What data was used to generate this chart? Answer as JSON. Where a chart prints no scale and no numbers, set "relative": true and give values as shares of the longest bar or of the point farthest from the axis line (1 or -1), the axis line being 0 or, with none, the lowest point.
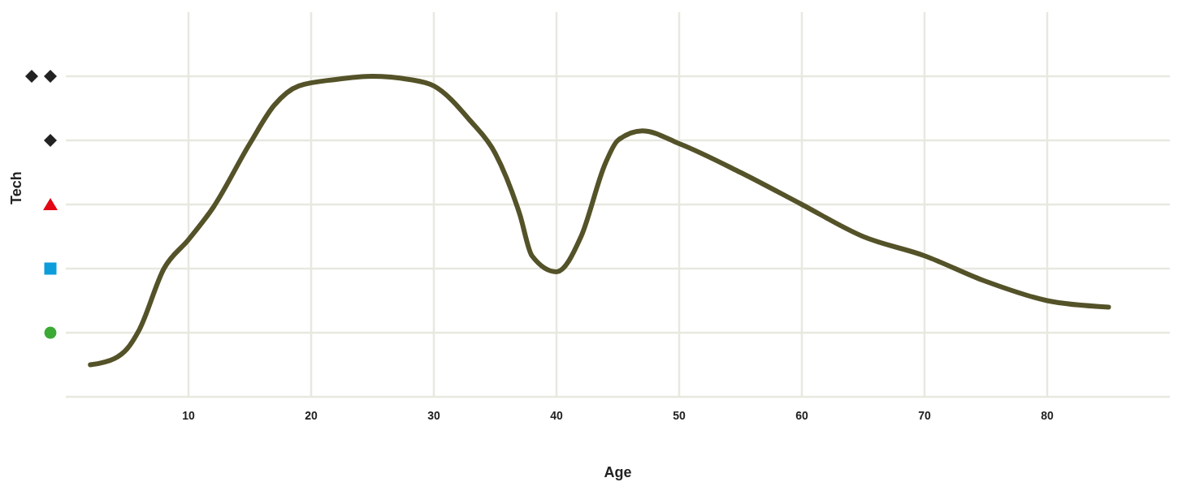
{
  "chart_data": {
    "type": "line",
    "xlabel": "Age",
    "ylabel": "Tech",
    "x": [
      2,
      4,
      5,
      6,
      8,
      10,
      12,
      15,
      17,
      19,
      22,
      25,
      28,
      30,
      33,
      35,
      37,
      38,
      40,
      42,
      44,
      45,
      47,
      50,
      55,
      60,
      65,
      70,
      75,
      80,
      85
    ],
    "series": [
      {
        "color": "#545228",
        "values": [
          0.1,
          0.12,
          0.15,
          0.21,
          0.4,
          0.49,
          0.59,
          0.79,
          0.91,
          0.97,
          0.99,
          1,
          0.99,
          0.97,
          0.86,
          0.76,
          0.57,
          0.44,
          0.39,
          0.5,
          0.73,
          0.8,
          0.83,
          0.79,
          0.7,
          0.6,
          0.5,
          0.44,
          0.36,
          0.3,
          0.28
        ]
      }
    ],
    "xlim": [
      0,
      90
    ],
    "xticks": [
      10,
      20,
      30,
      40,
      50,
      60,
      70,
      80
    ],
    "relative": true,
    "grid": true,
    "marker": "none",
    "line_style": "solid",
    "legend": false
  }
}
